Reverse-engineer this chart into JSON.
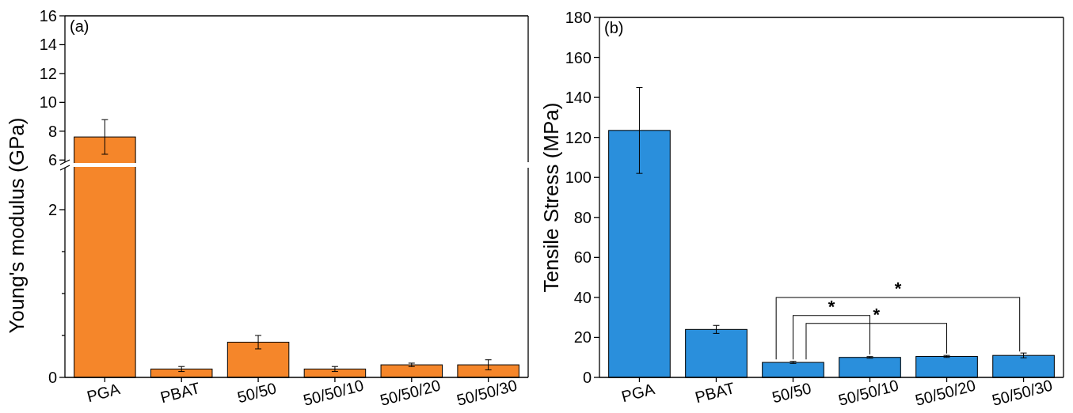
{
  "chart_data": [
    {
      "type": "bar",
      "title": "(a)",
      "values": [
        7.6,
        null,
        null,
        null,
        null,
        null
      ],
      "errors": [
        1.2,
        null,
        null,
        null,
        null,
        null
      ],
      "color": "#f5862a",
      "ylim": [
        5.85,
        16
      ],
      "yticks": [
        6,
        8,
        10,
        12,
        14,
        16
      ],
      "tick_labels": "y"
    },
    {
      "type": "bar",
      "ylabel": "Young's modulus (GPa)",
      "categories": [
        "PGA",
        "PBAT",
        "50/50",
        "50/50/10",
        "50/50/20",
        "50/50/30"
      ],
      "values": [
        null,
        0.1,
        0.42,
        0.1,
        0.15,
        0.15
      ],
      "errors": [
        null,
        0.03,
        0.08,
        0.03,
        0.02,
        0.06
      ],
      "color": "#f5862a",
      "ylim": [
        0,
        2.5
      ],
      "yticks": [
        0,
        {
          "value": 0.5,
          "label": null
        },
        {
          "value": 1,
          "label": null
        },
        {
          "value": 1.5,
          "label": null
        },
        2
      ]
    },
    {
      "type": "bar",
      "title": "(b)",
      "ylabel": "Tensile Stress (MPa)",
      "categories": [
        "PGA",
        "PBAT",
        "50/50",
        "50/50/10",
        "50/50/20",
        "50/50/30"
      ],
      "values": [
        123.5,
        24,
        7.5,
        10,
        10.5,
        11
      ],
      "errors": [
        21.5,
        2,
        0.5,
        0.4,
        0.5,
        1.2
      ],
      "color": "#2a8fdc",
      "ylim": [
        0,
        180
      ],
      "yticks": [
        0,
        20,
        40,
        60,
        80,
        100,
        120,
        140,
        160,
        180
      ],
      "annotations": [
        "*",
        "*",
        "*"
      ]
    }
  ]
}
